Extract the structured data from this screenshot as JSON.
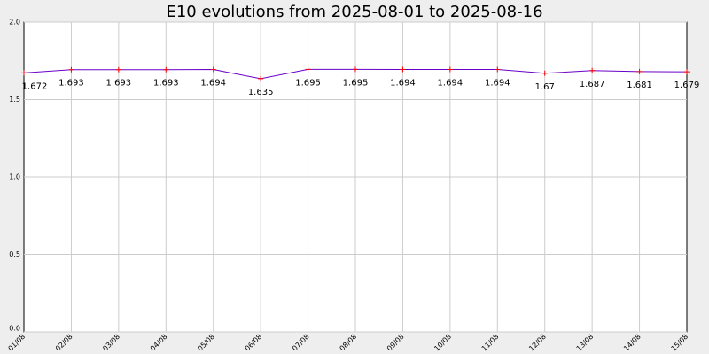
{
  "chart_data": {
    "type": "line",
    "title": "E10 evolutions from 2025-08-01 to 2025-08-16",
    "categories": [
      "01/08",
      "02/08",
      "03/08",
      "04/08",
      "05/08",
      "06/08",
      "07/08",
      "08/08",
      "09/08",
      "10/08",
      "11/08",
      "12/08",
      "13/08",
      "14/08",
      "15/08"
    ],
    "series": [
      {
        "name": "E10",
        "color": "#6a00c8",
        "marker_color": "#ff0000",
        "values": [
          1.672,
          1.693,
          1.693,
          1.693,
          1.694,
          1.635,
          1.695,
          1.695,
          1.694,
          1.694,
          1.694,
          1.67,
          1.687,
          1.681,
          1.679
        ]
      }
    ],
    "ylim": [
      0,
      2
    ],
    "yticks": [
      {
        "value": 0,
        "label": "0.0"
      },
      0.5,
      {
        "value": 1,
        "label": "1.0"
      },
      1.5,
      {
        "value": 2,
        "label": "2.0"
      }
    ],
    "grid": true
  }
}
